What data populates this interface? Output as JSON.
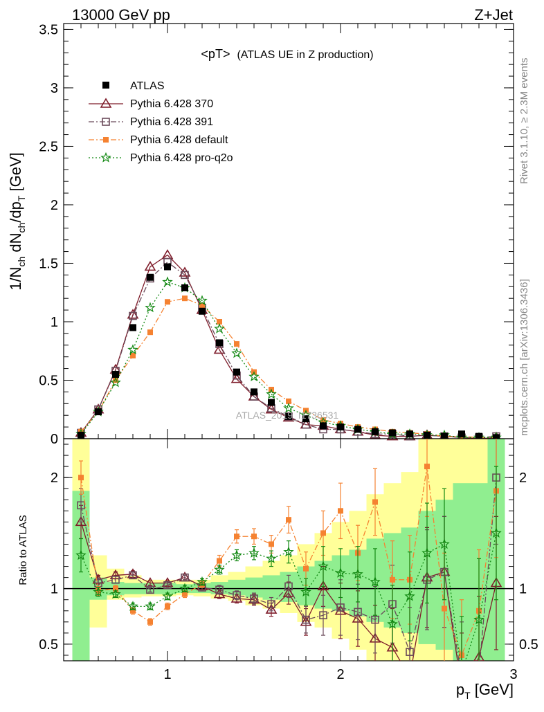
{
  "header": {
    "left": "13000 GeV pp",
    "right": "Z+Jet"
  },
  "side_labels": {
    "rivet": "Rivet 3.1.10, ≥ 2.3M events",
    "mcplots": "mcplots.cern.ch [arXiv:1306.3436]"
  },
  "watermark": "ATLAS_2019_I1736531",
  "chart_data": {
    "type": "scatter",
    "title_main": "<pT>",
    "title_sub": "(ATLAS UE in Z production)",
    "ylabel_main_parts": [
      "1/N",
      "ch",
      " dN",
      "ch",
      "/dp",
      "T",
      " [GeV]"
    ],
    "ylabel_ratio": "Ratio to ATLAS",
    "xlabel_parts": [
      "p",
      "T",
      " [GeV]"
    ],
    "xlim": [
      0.4,
      3.0
    ],
    "ylim_main": [
      0,
      3.55
    ],
    "ylim_ratio": [
      0.35,
      2.35
    ],
    "x_ticks": [
      1,
      2,
      3
    ],
    "x_tick_labels": [
      "1",
      "2",
      "3"
    ],
    "y_ticks_main": [
      0,
      0.5,
      1,
      1.5,
      2,
      2.5,
      3,
      3.5
    ],
    "y_tick_labels_main": [
      "0",
      "0.5",
      "1",
      "1.5",
      "2",
      "2.5",
      "3",
      "3.5"
    ],
    "y_ticks_ratio": [
      0.5,
      1,
      2
    ],
    "y_tick_labels_ratio": [
      "0.5",
      "1",
      "2"
    ],
    "x": [
      0.5,
      0.6,
      0.7,
      0.8,
      0.9,
      1.0,
      1.1,
      1.2,
      1.3,
      1.4,
      1.5,
      1.6,
      1.7,
      1.8,
      1.9,
      2.0,
      2.1,
      2.2,
      2.3,
      2.4,
      2.5,
      2.6,
      2.7,
      2.8,
      2.9
    ],
    "legend_placement": "top-left",
    "data_series": {
      "name": "ATLAS",
      "color": "#000000",
      "values": [
        0.03,
        0.23,
        0.55,
        0.95,
        1.38,
        1.47,
        1.29,
        1.09,
        0.82,
        0.57,
        0.4,
        0.31,
        0.19,
        0.17,
        0.11,
        0.1,
        0.08,
        0.06,
        0.05,
        0.04,
        0.03,
        0.02,
        0.04,
        0.02,
        0.01
      ]
    },
    "series": [
      {
        "name": "Pythia 6.428 370",
        "color": "#7f1d2b",
        "marker": "triangle",
        "line": "solid",
        "values": [
          0.05,
          0.25,
          0.59,
          1.06,
          1.47,
          1.57,
          1.42,
          1.1,
          0.76,
          0.51,
          0.36,
          0.25,
          0.18,
          0.12,
          0.11,
          0.08,
          0.06,
          0.03,
          0.02,
          0.02,
          0.03,
          0.02,
          0.01,
          0.0,
          0.01
        ],
        "ratio": [
          1.6,
          1.08,
          1.12,
          1.13,
          1.05,
          1.05,
          1.1,
          1.02,
          0.95,
          0.91,
          0.9,
          0.81,
          0.96,
          0.7,
          1.02,
          0.8,
          0.73,
          0.55,
          0.47,
          0.2,
          1.1,
          1.15,
          0.1,
          0.38,
          1.05
        ],
        "ratio_err": [
          0.15,
          0.04,
          0.03,
          0.03,
          0.02,
          0.02,
          0.02,
          0.03,
          0.04,
          0.04,
          0.05,
          0.06,
          0.1,
          0.12,
          0.18,
          0.25,
          0.25,
          0.3,
          0.35,
          0.4,
          0.45,
          0.5,
          0.5,
          0.55,
          0.6
        ]
      },
      {
        "name": "Pythia 6.428 391",
        "color": "#6a4a5a",
        "marker": "open-square",
        "line": "dashdot",
        "values": [
          0.05,
          0.25,
          0.58,
          1.05,
          1.37,
          1.51,
          1.4,
          1.12,
          0.81,
          0.54,
          0.36,
          0.26,
          0.19,
          0.12,
          0.08,
          0.08,
          0.06,
          0.04,
          0.04,
          0.02,
          0.03,
          0.02,
          0.01,
          0.01,
          0.02
        ],
        "ratio": [
          1.75,
          1.05,
          1.08,
          1.12,
          0.99,
          1.03,
          1.1,
          1.01,
          0.99,
          0.94,
          0.91,
          0.86,
          1.02,
          0.72,
          0.76,
          0.83,
          0.79,
          0.72,
          0.86,
          0.43,
          1.08,
          1.15,
          0.2,
          0.25,
          2.0
        ],
        "ratio_err": [
          0.15,
          0.04,
          0.03,
          0.03,
          0.02,
          0.02,
          0.02,
          0.03,
          0.04,
          0.04,
          0.05,
          0.06,
          0.1,
          0.12,
          0.18,
          0.25,
          0.25,
          0.3,
          0.35,
          0.4,
          0.45,
          0.5,
          0.5,
          0.55,
          0.6
        ]
      },
      {
        "name": "Pythia 6.428 default",
        "color": "#f58231",
        "marker": "filled-square",
        "line": "dashdot",
        "values": [
          0.06,
          0.23,
          0.5,
          0.71,
          0.91,
          1.17,
          1.2,
          1.14,
          1.0,
          0.81,
          0.57,
          0.42,
          0.32,
          0.24,
          0.16,
          0.13,
          0.1,
          0.08,
          0.06,
          0.05,
          0.04,
          0.02,
          0.02,
          0.01,
          0.01
        ],
        "ratio": [
          2.0,
          0.98,
          1.0,
          0.8,
          0.7,
          0.84,
          0.95,
          1.04,
          1.25,
          1.47,
          1.47,
          1.4,
          1.62,
          1.18,
          1.5,
          1.7,
          1.32,
          1.78,
          1.08,
          1.08,
          2.1,
          0.82,
          0.4,
          0.8,
          1.88
        ],
        "ratio_err": [
          0.15,
          0.04,
          0.03,
          0.03,
          0.03,
          0.03,
          0.03,
          0.03,
          0.05,
          0.06,
          0.07,
          0.08,
          0.12,
          0.15,
          0.2,
          0.25,
          0.25,
          0.3,
          0.35,
          0.4,
          0.45,
          0.5,
          0.5,
          0.55,
          0.6
        ]
      },
      {
        "name": "Pythia 6.428 pro-q2o",
        "color": "#118811",
        "marker": "star",
        "line": "dotted",
        "values": [
          0.04,
          0.23,
          0.48,
          0.76,
          1.12,
          1.34,
          1.29,
          1.18,
          0.94,
          0.73,
          0.53,
          0.38,
          0.26,
          0.2,
          0.14,
          0.11,
          0.08,
          0.06,
          0.04,
          0.04,
          0.03,
          0.03,
          0.01,
          0.01,
          0.01
        ],
        "ratio": [
          1.3,
          0.97,
          0.95,
          0.84,
          0.84,
          0.93,
          1.0,
          1.06,
          1.17,
          1.3,
          1.32,
          1.27,
          1.33,
          0.97,
          1.2,
          1.14,
          1.13,
          1.06,
          0.68,
          0.93,
          1.32,
          1.4,
          0.25,
          0.72,
          1.5
        ],
        "ratio_err": [
          0.15,
          0.04,
          0.03,
          0.03,
          0.03,
          0.03,
          0.03,
          0.03,
          0.04,
          0.05,
          0.06,
          0.07,
          0.1,
          0.12,
          0.18,
          0.22,
          0.25,
          0.3,
          0.35,
          0.4,
          0.45,
          0.5,
          0.5,
          0.55,
          0.6
        ]
      }
    ],
    "uncertainty_bands": {
      "stat_color": "#90ee90",
      "total_color": "#ffff99",
      "bins": [
        {
          "x0": 0.45,
          "x1": 0.55,
          "g": [
            0.35,
            1.88
          ],
          "y": [
            0.35,
            2.35
          ]
        },
        {
          "x0": 0.55,
          "x1": 0.65,
          "g": [
            0.9,
            1.1
          ],
          "y": [
            0.65,
            1.3
          ]
        },
        {
          "x0": 0.65,
          "x1": 0.75,
          "g": [
            0.94,
            1.06
          ],
          "y": [
            0.9,
            1.18
          ]
        },
        {
          "x0": 0.75,
          "x1": 0.85,
          "g": [
            0.95,
            1.05
          ],
          "y": [
            0.92,
            1.12
          ]
        },
        {
          "x0": 0.85,
          "x1": 0.95,
          "g": [
            0.95,
            1.05
          ],
          "y": [
            0.93,
            1.08
          ]
        },
        {
          "x0": 0.95,
          "x1": 1.05,
          "g": [
            0.95,
            1.05
          ],
          "y": [
            0.93,
            1.08
          ]
        },
        {
          "x0": 1.05,
          "x1": 1.15,
          "g": [
            0.96,
            1.04
          ],
          "y": [
            0.94,
            1.08
          ]
        },
        {
          "x0": 1.15,
          "x1": 1.25,
          "g": [
            0.96,
            1.05
          ],
          "y": [
            0.93,
            1.08
          ]
        },
        {
          "x0": 1.25,
          "x1": 1.35,
          "g": [
            0.95,
            1.06
          ],
          "y": [
            0.91,
            1.12
          ]
        },
        {
          "x0": 1.35,
          "x1": 1.45,
          "g": [
            0.94,
            1.08
          ],
          "y": [
            0.89,
            1.15
          ]
        },
        {
          "x0": 1.45,
          "x1": 1.55,
          "g": [
            0.92,
            1.1
          ],
          "y": [
            0.85,
            1.2
          ]
        },
        {
          "x0": 1.55,
          "x1": 1.65,
          "g": [
            0.9,
            1.12
          ],
          "y": [
            0.82,
            1.25
          ]
        },
        {
          "x0": 1.65,
          "x1": 1.75,
          "g": [
            0.88,
            1.15
          ],
          "y": [
            0.78,
            1.3
          ]
        },
        {
          "x0": 1.75,
          "x1": 1.85,
          "g": [
            0.85,
            1.2
          ],
          "y": [
            0.7,
            1.4
          ]
        },
        {
          "x0": 1.85,
          "x1": 1.95,
          "g": [
            0.82,
            1.25
          ],
          "y": [
            0.65,
            1.5
          ]
        },
        {
          "x0": 1.95,
          "x1": 2.05,
          "g": [
            0.8,
            1.3
          ],
          "y": [
            0.55,
            1.6
          ]
        },
        {
          "x0": 2.05,
          "x1": 2.15,
          "g": [
            0.75,
            1.35
          ],
          "y": [
            0.45,
            1.7
          ]
        },
        {
          "x0": 2.15,
          "x1": 2.25,
          "g": [
            0.7,
            1.45
          ],
          "y": [
            0.35,
            1.85
          ]
        },
        {
          "x0": 2.25,
          "x1": 2.35,
          "g": [
            0.65,
            1.5
          ],
          "y": [
            0.35,
            1.95
          ]
        },
        {
          "x0": 2.35,
          "x1": 2.45,
          "g": [
            0.6,
            1.55
          ],
          "y": [
            0.35,
            2.05
          ]
        },
        {
          "x0": 2.45,
          "x1": 2.55,
          "g": [
            0.5,
            1.7
          ],
          "y": [
            0.35,
            2.35
          ]
        },
        {
          "x0": 2.55,
          "x1": 2.65,
          "g": [
            0.45,
            1.8
          ],
          "y": [
            0.35,
            2.35
          ]
        },
        {
          "x0": 2.65,
          "x1": 2.75,
          "g": [
            0.35,
            1.95
          ],
          "y": [
            0.35,
            2.35
          ]
        },
        {
          "x0": 2.75,
          "x1": 2.85,
          "g": [
            0.35,
            1.95
          ],
          "y": [
            0.35,
            2.35
          ]
        },
        {
          "x0": 2.85,
          "x1": 2.95,
          "g": [
            0.35,
            2.35
          ],
          "y": [
            0.35,
            2.35
          ]
        }
      ]
    }
  }
}
